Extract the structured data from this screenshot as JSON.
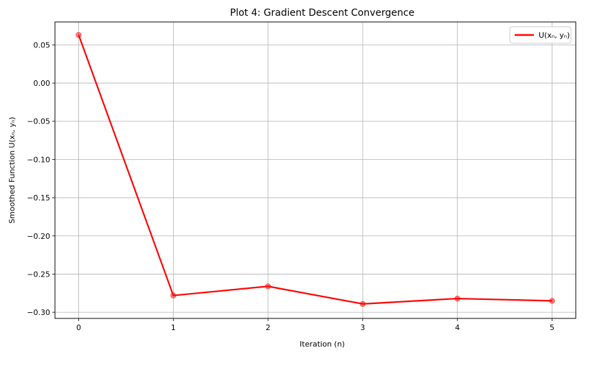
{
  "chart_data": {
    "type": "line",
    "title": "Plot 4: Gradient Descent Convergence",
    "xlabel": "Iteration (n)",
    "ylabel": "Smoothed Function U(xₙ, yₙ)",
    "x": [
      0,
      1,
      2,
      3,
      4,
      5
    ],
    "xticks": [
      "0",
      "1",
      "2",
      "3",
      "4",
      "5"
    ],
    "xlim": [
      -0.25,
      5.25
    ],
    "ylim": [
      -0.308,
      0.08
    ],
    "yticks": [
      "0.05",
      "0.00",
      "−0.05",
      "−0.10",
      "−0.15",
      "−0.20",
      "−0.25",
      "−0.30"
    ],
    "ytick_values": [
      0.05,
      0.0,
      -0.05,
      -0.1,
      -0.15,
      -0.2,
      -0.25,
      -0.3
    ],
    "grid": true,
    "legend_position": "top-right",
    "series": [
      {
        "name": "U(xₙ, yₙ)",
        "color": "#ff0000",
        "values": [
          0.063,
          -0.278,
          -0.266,
          -0.289,
          -0.282,
          -0.285
        ]
      }
    ]
  }
}
